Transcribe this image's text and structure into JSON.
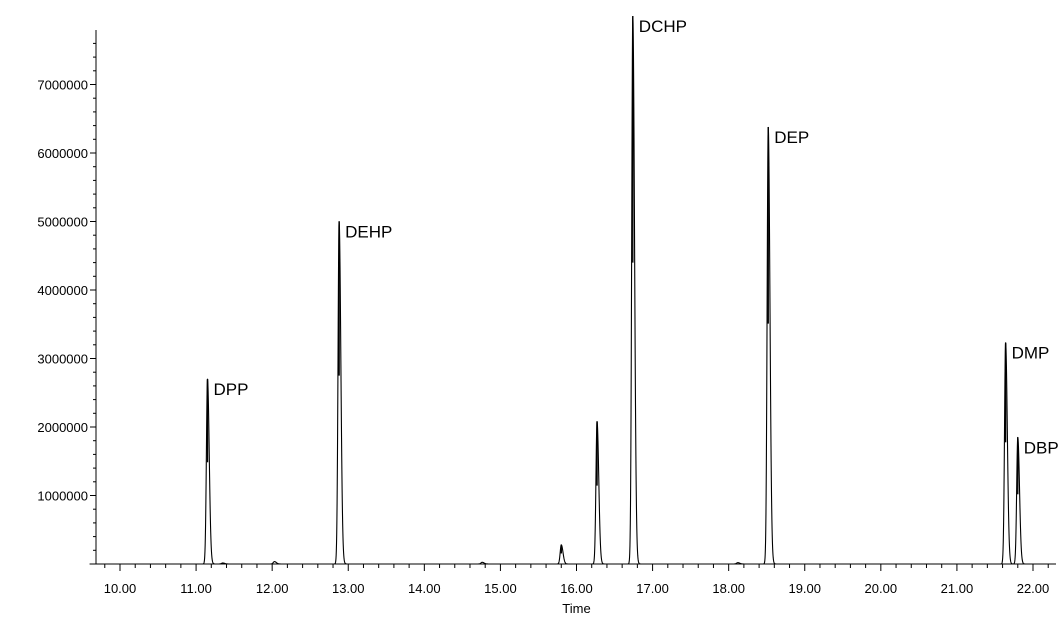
{
  "chart_data": {
    "type": "line",
    "title": "",
    "xlabel": "Time",
    "ylabel": "",
    "xlim": [
      9.6,
      22.3
    ],
    "ylim": [
      0,
      8000000
    ],
    "x_ticks": [
      10,
      11,
      12,
      13,
      14,
      15,
      16,
      17,
      18,
      19,
      20,
      21,
      22
    ],
    "x_tick_labels": [
      "10.00",
      "11.00",
      "12.00",
      "13.00",
      "14.00",
      "15.00",
      "16.00",
      "17.00",
      "18.00",
      "19.00",
      "20.00",
      "21.00",
      "22.00"
    ],
    "y_ticks": [
      1000000,
      2000000,
      3000000,
      4000000,
      5000000,
      6000000,
      7000000
    ],
    "y_tick_labels": [
      "1000000",
      "2000000",
      "3000000",
      "4000000",
      "5000000",
      "6000000",
      "7000000"
    ],
    "y_minor_step": 200000,
    "grid": false,
    "peaks": [
      {
        "label": "DPP",
        "x": 11.15,
        "y": 2700000
      },
      {
        "label": "DEHP",
        "x": 12.88,
        "y": 5000000
      },
      {
        "label": "",
        "x": 15.8,
        "y": 280000
      },
      {
        "label": "",
        "x": 16.27,
        "y": 2080000
      },
      {
        "label": "DCHP",
        "x": 16.74,
        "y": 8000000
      },
      {
        "label": "DEP",
        "x": 18.52,
        "y": 6380000
      },
      {
        "label": "DMP",
        "x": 21.64,
        "y": 3230000
      },
      {
        "label": "DBP",
        "x": 21.8,
        "y": 1850000
      }
    ],
    "minor_peaks": [
      {
        "x": 11.35,
        "y": 15000
      },
      {
        "x": 12.03,
        "y": 35000
      },
      {
        "x": 14.76,
        "y": 25000
      },
      {
        "x": 18.12,
        "y": 20000
      }
    ]
  }
}
